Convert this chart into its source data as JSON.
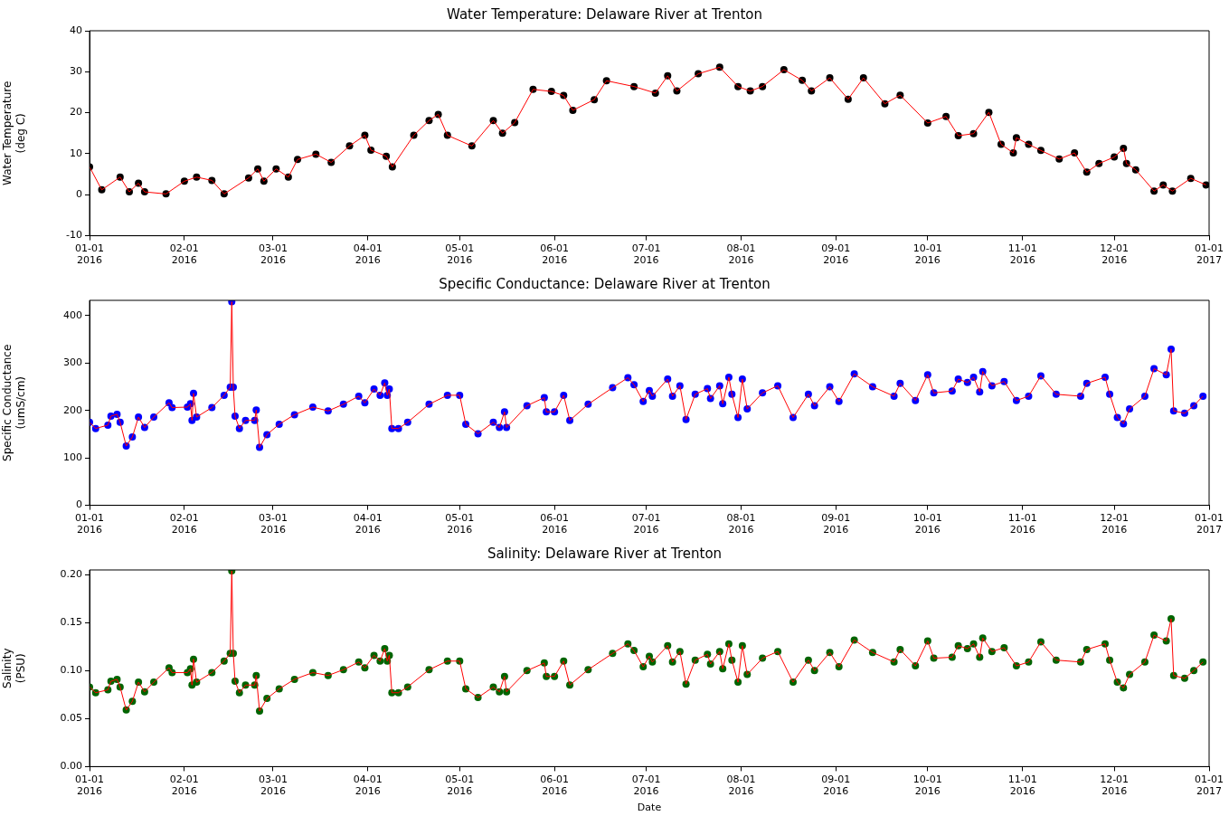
{
  "chart_data": [
    {
      "type": "line",
      "title": "Water Temperature: Delaware River at Trenton",
      "ylabel": "Water Temperature\n(deg C)",
      "marker": "circle",
      "xlim": [
        "2016-01-01",
        "2017-01-01"
      ],
      "xticks": [
        {
          "value": "2016-01-01",
          "label": "01-01\n2016"
        },
        {
          "value": "2016-02-01",
          "label": "02-01\n2016"
        },
        {
          "value": "2016-03-01",
          "label": "03-01\n2016"
        },
        {
          "value": "2016-04-01",
          "label": "04-01\n2016"
        },
        {
          "value": "2016-05-01",
          "label": "05-01\n2016"
        },
        {
          "value": "2016-06-01",
          "label": "06-01\n2016"
        },
        {
          "value": "2016-07-01",
          "label": "07-01\n2016"
        },
        {
          "value": "2016-08-01",
          "label": "08-01\n2016"
        },
        {
          "value": "2016-09-01",
          "label": "09-01\n2016"
        },
        {
          "value": "2016-10-01",
          "label": "10-01\n2016"
        },
        {
          "value": "2016-11-01",
          "label": "11-01\n2016"
        },
        {
          "value": "2016-12-01",
          "label": "12-01\n2016"
        },
        {
          "value": "2017-01-01",
          "label": "01-01\n2017"
        }
      ],
      "ylim": [
        -10,
        40
      ],
      "yticks": [
        -10,
        0,
        10,
        20,
        30,
        40
      ],
      "x": [
        "2016-01-01",
        "2016-01-05",
        "2016-01-11",
        "2016-01-14",
        "2016-01-17",
        "2016-01-19",
        "2016-01-26",
        "2016-02-01",
        "2016-02-05",
        "2016-02-10",
        "2016-02-14",
        "2016-02-22",
        "2016-02-25",
        "2016-02-27",
        "2016-03-02",
        "2016-03-06",
        "2016-03-09",
        "2016-03-15",
        "2016-03-20",
        "2016-03-26",
        "2016-03-31",
        "2016-04-02",
        "2016-04-07",
        "2016-04-09",
        "2016-04-16",
        "2016-04-21",
        "2016-04-24",
        "2016-04-27",
        "2016-05-05",
        "2016-05-12",
        "2016-05-15",
        "2016-05-19",
        "2016-05-25",
        "2016-05-31",
        "2016-06-04",
        "2016-06-07",
        "2016-06-14",
        "2016-06-18",
        "2016-06-27",
        "2016-07-04",
        "2016-07-08",
        "2016-07-11",
        "2016-07-18",
        "2016-07-25",
        "2016-07-31",
        "2016-08-04",
        "2016-08-08",
        "2016-08-15",
        "2016-08-21",
        "2016-08-24",
        "2016-08-30",
        "2016-09-05",
        "2016-09-10",
        "2016-09-17",
        "2016-09-22",
        "2016-10-01",
        "2016-10-07",
        "2016-10-11",
        "2016-10-16",
        "2016-10-21",
        "2016-10-25",
        "2016-10-29",
        "2016-10-30",
        "2016-11-03",
        "2016-11-07",
        "2016-11-13",
        "2016-11-18",
        "2016-11-22",
        "2016-11-26",
        "2016-12-01",
        "2016-12-04",
        "2016-12-05",
        "2016-12-08",
        "2016-12-14",
        "2016-12-17",
        "2016-12-20",
        "2016-12-26",
        "2016-12-31"
      ],
      "series": [
        {
          "type": "scatter",
          "color": "#000000",
          "values": [
            6.8,
            1.2,
            4.3,
            0.7,
            2.8,
            0.7,
            0.2,
            3.3,
            4.3,
            3.5,
            0.2,
            4.1,
            6.3,
            3.3,
            6.3,
            4.3,
            8.6,
            9.9,
            7.9,
            11.9,
            14.5,
            10.9,
            9.4,
            6.8,
            14.5,
            18.1,
            19.6,
            14.5,
            11.9,
            18.1,
            15,
            17.6,
            25.7,
            25.2,
            24.2,
            20.6,
            23.2,
            27.8,
            26.4,
            24.8,
            29,
            25.3,
            29.5,
            31.1,
            26.4,
            25.3,
            26.4,
            30.5,
            27.9,
            25.3,
            28.5,
            23.3,
            28.5,
            22.2,
            24.3,
            17.5,
            19.1,
            14.4,
            14.9,
            20.1,
            12.3,
            10.2,
            13.9,
            12.3,
            10.8,
            8.7,
            10.2,
            5.5,
            7.6,
            9.2,
            11.3,
            7.6,
            6.1,
            0.9,
            2.4,
            0.9,
            4,
            2.4
          ]
        },
        {
          "type": "line",
          "color": "#ff0000",
          "marker": "none",
          "values": [
            6.8,
            1.2,
            4.3,
            0.7,
            2.8,
            0.7,
            0.2,
            3.3,
            4.3,
            3.5,
            0.2,
            4.1,
            6.3,
            3.3,
            6.3,
            4.3,
            8.6,
            9.9,
            7.9,
            11.9,
            14.5,
            10.9,
            9.4,
            6.8,
            14.5,
            18.1,
            19.6,
            14.5,
            11.9,
            18.1,
            15,
            17.6,
            25.7,
            25.2,
            24.2,
            20.6,
            23.2,
            27.8,
            26.4,
            24.8,
            29,
            25.3,
            29.5,
            31.1,
            26.4,
            25.3,
            26.4,
            30.5,
            27.9,
            25.3,
            28.5,
            23.3,
            28.5,
            22.2,
            24.3,
            17.5,
            19.1,
            14.4,
            14.9,
            20.1,
            12.3,
            10.2,
            13.9,
            12.3,
            10.8,
            8.7,
            10.2,
            5.5,
            7.6,
            9.2,
            11.3,
            7.6,
            6.1,
            0.9,
            2.4,
            0.9,
            4,
            2.4
          ]
        }
      ]
    },
    {
      "type": "line",
      "title": "Specific Conductance: Delaware River at Trenton",
      "ylabel": "Specific Conductance\n(umS/cm)",
      "marker": "circle",
      "xlim": [
        "2016-01-01",
        "2017-01-01"
      ],
      "xticks": [
        {
          "value": "2016-01-01",
          "label": "01-01\n2016"
        },
        {
          "value": "2016-02-01",
          "label": "02-01\n2016"
        },
        {
          "value": "2016-03-01",
          "label": "03-01\n2016"
        },
        {
          "value": "2016-04-01",
          "label": "04-01\n2016"
        },
        {
          "value": "2016-05-01",
          "label": "05-01\n2016"
        },
        {
          "value": "2016-06-01",
          "label": "06-01\n2016"
        },
        {
          "value": "2016-07-01",
          "label": "07-01\n2016"
        },
        {
          "value": "2016-08-01",
          "label": "08-01\n2016"
        },
        {
          "value": "2016-09-01",
          "label": "09-01\n2016"
        },
        {
          "value": "2016-10-01",
          "label": "10-01\n2016"
        },
        {
          "value": "2016-11-01",
          "label": "11-01\n2016"
        },
        {
          "value": "2016-12-01",
          "label": "12-01\n2016"
        },
        {
          "value": "2017-01-01",
          "label": "01-01\n2017"
        }
      ],
      "ylim": [
        0,
        432
      ],
      "yticks": [
        0,
        100,
        200,
        300,
        400
      ],
      "x": [
        "2016-01-01",
        "2016-01-03",
        "2016-01-07",
        "2016-01-08",
        "2016-01-10",
        "2016-01-11",
        "2016-01-13",
        "2016-01-15",
        "2016-01-17",
        "2016-01-19",
        "2016-01-22",
        "2016-01-27",
        "2016-01-28",
        "2016-02-02",
        "2016-02-03",
        "2016-02-03T12:00",
        "2016-02-04",
        "2016-02-05",
        "2016-02-10",
        "2016-02-14",
        "2016-02-16",
        "2016-02-16T12:00",
        "2016-02-17",
        "2016-02-17T14:00",
        "2016-02-19",
        "2016-02-21",
        "2016-02-24",
        "2016-02-24T12:00",
        "2016-02-25T14:00",
        "2016-02-28",
        "2016-03-03",
        "2016-03-08",
        "2016-03-14",
        "2016-03-19",
        "2016-03-24",
        "2016-03-29",
        "2016-03-31",
        "2016-04-03",
        "2016-04-05",
        "2016-04-06T12:00",
        "2016-04-07T08:00",
        "2016-04-08",
        "2016-04-08T20:00",
        "2016-04-11",
        "2016-04-14",
        "2016-04-21",
        "2016-04-27",
        "2016-05-01",
        "2016-05-03",
        "2016-05-07",
        "2016-05-12",
        "2016-05-14",
        "2016-05-15T16:00",
        "2016-05-16T08:00",
        "2016-05-23",
        "2016-05-28T16:00",
        "2016-05-29T08:00",
        "2016-06-01",
        "2016-06-04",
        "2016-06-06",
        "2016-06-12",
        "2016-06-20",
        "2016-06-25",
        "2016-06-27",
        "2016-06-30",
        "2016-07-02",
        "2016-07-03",
        "2016-07-08",
        "2016-07-09T14:00",
        "2016-07-12",
        "2016-07-14",
        "2016-07-17",
        "2016-07-21",
        "2016-07-22",
        "2016-07-25",
        "2016-07-26",
        "2016-07-28",
        "2016-07-29",
        "2016-07-31",
        "2016-08-01T10:00",
        "2016-08-03",
        "2016-08-08",
        "2016-08-13",
        "2016-08-18",
        "2016-08-23",
        "2016-08-25",
        "2016-08-30",
        "2016-09-02",
        "2016-09-07",
        "2016-09-13",
        "2016-09-20",
        "2016-09-22",
        "2016-09-27",
        "2016-10-01",
        "2016-10-03",
        "2016-10-09",
        "2016-10-11",
        "2016-10-14",
        "2016-10-16",
        "2016-10-18",
        "2016-10-19",
        "2016-10-22",
        "2016-10-26",
        "2016-10-30",
        "2016-11-03",
        "2016-11-07",
        "2016-11-12",
        "2016-11-20",
        "2016-11-22",
        "2016-11-28",
        "2016-11-29T12:00",
        "2016-12-02",
        "2016-12-04",
        "2016-12-06",
        "2016-12-11",
        "2016-12-14",
        "2016-12-18",
        "2016-12-19T14:00",
        "2016-12-20T10:00",
        "2016-12-24",
        "2016-12-27",
        "2016-12-30"
      ],
      "series": [
        {
          "type": "scatter",
          "color": "#0000ff",
          "values": [
            175,
            162,
            169,
            188,
            192,
            175,
            125,
            144,
            186,
            164,
            186,
            216,
            206,
            207,
            214,
            179,
            236,
            186,
            206,
            232,
            249,
            429,
            249,
            188,
            162,
            179,
            179,
            201,
            122,
            149,
            171,
            191,
            207,
            199,
            213,
            230,
            216,
            245,
            232,
            258,
            232,
            245,
            162,
            162,
            175,
            213,
            232,
            232,
            171,
            151,
            175,
            164,
            197,
            164,
            210,
            227,
            197,
            197,
            232,
            179,
            213,
            248,
            269,
            254,
            219,
            242,
            230,
            266,
            230,
            252,
            181,
            234,
            246,
            225,
            252,
            214,
            270,
            234,
            185,
            266,
            203,
            237,
            252,
            185,
            234,
            210,
            250,
            219,
            277,
            250,
            230,
            257,
            221,
            275,
            237,
            241,
            266,
            259,
            270,
            239,
            282,
            252,
            261,
            221,
            230,
            273,
            234,
            230,
            257,
            270,
            234,
            185,
            172,
            203,
            230,
            288,
            275,
            329,
            199,
            194,
            210,
            230
          ]
        },
        {
          "type": "line",
          "color": "#ff0000",
          "marker": "none",
          "values": [
            175,
            162,
            169,
            188,
            192,
            175,
            125,
            144,
            186,
            164,
            186,
            216,
            206,
            207,
            214,
            179,
            236,
            186,
            206,
            232,
            249,
            429,
            249,
            188,
            162,
            179,
            179,
            201,
            122,
            149,
            171,
            191,
            207,
            199,
            213,
            230,
            216,
            245,
            232,
            258,
            232,
            245,
            162,
            162,
            175,
            213,
            232,
            232,
            171,
            151,
            175,
            164,
            197,
            164,
            210,
            227,
            197,
            197,
            232,
            179,
            213,
            248,
            269,
            254,
            219,
            242,
            230,
            266,
            230,
            252,
            181,
            234,
            246,
            225,
            252,
            214,
            270,
            234,
            185,
            266,
            203,
            237,
            252,
            185,
            234,
            210,
            250,
            219,
            277,
            250,
            230,
            257,
            221,
            275,
            237,
            241,
            266,
            259,
            270,
            239,
            282,
            252,
            261,
            221,
            230,
            273,
            234,
            230,
            257,
            270,
            234,
            185,
            172,
            203,
            230,
            288,
            275,
            329,
            199,
            194,
            210,
            230
          ]
        }
      ]
    },
    {
      "type": "line",
      "title": "Salinity: Delaware River at Trenton",
      "xlabel": "Date",
      "ylabel": "Salinity\n(PSU)",
      "marker": "circle",
      "xlim": [
        "2016-01-01",
        "2017-01-01"
      ],
      "xticks": [
        {
          "value": "2016-01-01",
          "label": "01-01\n2016"
        },
        {
          "value": "2016-02-01",
          "label": "02-01\n2016"
        },
        {
          "value": "2016-03-01",
          "label": "03-01\n2016"
        },
        {
          "value": "2016-04-01",
          "label": "04-01\n2016"
        },
        {
          "value": "2016-05-01",
          "label": "05-01\n2016"
        },
        {
          "value": "2016-06-01",
          "label": "06-01\n2016"
        },
        {
          "value": "2016-07-01",
          "label": "07-01\n2016"
        },
        {
          "value": "2016-08-01",
          "label": "08-01\n2016"
        },
        {
          "value": "2016-09-01",
          "label": "09-01\n2016"
        },
        {
          "value": "2016-10-01",
          "label": "10-01\n2016"
        },
        {
          "value": "2016-11-01",
          "label": "11-01\n2016"
        },
        {
          "value": "2016-12-01",
          "label": "12-01\n2016"
        },
        {
          "value": "2017-01-01",
          "label": "01-01\n2017"
        }
      ],
      "ylim": [
        0,
        0.205
      ],
      "yticks": [
        {
          "value": 0,
          "label": "0.00"
        },
        {
          "value": 0.05,
          "label": "0.05"
        },
        {
          "value": 0.1,
          "label": "0.10"
        },
        {
          "value": 0.15,
          "label": "0.15"
        },
        {
          "value": 0.2,
          "label": "0.20"
        }
      ],
      "x": [
        "2016-01-01",
        "2016-01-03",
        "2016-01-07",
        "2016-01-08",
        "2016-01-10",
        "2016-01-11",
        "2016-01-13",
        "2016-01-15",
        "2016-01-17",
        "2016-01-19",
        "2016-01-22",
        "2016-01-27",
        "2016-01-28",
        "2016-02-02",
        "2016-02-03",
        "2016-02-03T12:00",
        "2016-02-04",
        "2016-02-05",
        "2016-02-10",
        "2016-02-14",
        "2016-02-16",
        "2016-02-16T12:00",
        "2016-02-17",
        "2016-02-17T14:00",
        "2016-02-19",
        "2016-02-21",
        "2016-02-24",
        "2016-02-24T12:00",
        "2016-02-25T14:00",
        "2016-02-28",
        "2016-03-03",
        "2016-03-08",
        "2016-03-14",
        "2016-03-19",
        "2016-03-24",
        "2016-03-29",
        "2016-03-31",
        "2016-04-03",
        "2016-04-05",
        "2016-04-06T12:00",
        "2016-04-07T08:00",
        "2016-04-08",
        "2016-04-08T20:00",
        "2016-04-11",
        "2016-04-14",
        "2016-04-21",
        "2016-04-27",
        "2016-05-01",
        "2016-05-03",
        "2016-05-07",
        "2016-05-12",
        "2016-05-14",
        "2016-05-15T16:00",
        "2016-05-16T08:00",
        "2016-05-23",
        "2016-05-28T16:00",
        "2016-05-29T08:00",
        "2016-06-01",
        "2016-06-04",
        "2016-06-06",
        "2016-06-12",
        "2016-06-20",
        "2016-06-25",
        "2016-06-27",
        "2016-06-30",
        "2016-07-02",
        "2016-07-03",
        "2016-07-08",
        "2016-07-09T14:00",
        "2016-07-12",
        "2016-07-14",
        "2016-07-17",
        "2016-07-21",
        "2016-07-22",
        "2016-07-25",
        "2016-07-26",
        "2016-07-28",
        "2016-07-29",
        "2016-07-31",
        "2016-08-01T10:00",
        "2016-08-03",
        "2016-08-08",
        "2016-08-13",
        "2016-08-18",
        "2016-08-23",
        "2016-08-25",
        "2016-08-30",
        "2016-09-02",
        "2016-09-07",
        "2016-09-13",
        "2016-09-20",
        "2016-09-22",
        "2016-09-27",
        "2016-10-01",
        "2016-10-03",
        "2016-10-09",
        "2016-10-11",
        "2016-10-14",
        "2016-10-16",
        "2016-10-18",
        "2016-10-19",
        "2016-10-22",
        "2016-10-26",
        "2016-10-30",
        "2016-11-03",
        "2016-11-07",
        "2016-11-12",
        "2016-11-20",
        "2016-11-22",
        "2016-11-28",
        "2016-11-29T12:00",
        "2016-12-02",
        "2016-12-04",
        "2016-12-06",
        "2016-12-11",
        "2016-12-14",
        "2016-12-18",
        "2016-12-19T14:00",
        "2016-12-20T10:00",
        "2016-12-24",
        "2016-12-27",
        "2016-12-30"
      ],
      "series": [
        {
          "type": "scatter",
          "color": "#006400",
          "values": [
            0.083,
            0.077,
            0.08,
            0.089,
            0.091,
            0.083,
            0.059,
            0.068,
            0.088,
            0.078,
            0.088,
            0.103,
            0.098,
            0.098,
            0.102,
            0.085,
            0.112,
            0.088,
            0.098,
            0.11,
            0.118,
            0.204,
            0.118,
            0.089,
            0.077,
            0.085,
            0.085,
            0.095,
            0.058,
            0.071,
            0.081,
            0.091,
            0.098,
            0.095,
            0.101,
            0.109,
            0.103,
            0.116,
            0.11,
            0.123,
            0.11,
            0.116,
            0.077,
            0.077,
            0.083,
            0.101,
            0.11,
            0.11,
            0.081,
            0.072,
            0.083,
            0.078,
            0.094,
            0.078,
            0.1,
            0.108,
            0.094,
            0.094,
            0.11,
            0.085,
            0.101,
            0.118,
            0.128,
            0.121,
            0.104,
            0.115,
            0.109,
            0.126,
            0.109,
            0.12,
            0.086,
            0.111,
            0.117,
            0.107,
            0.12,
            0.102,
            0.128,
            0.111,
            0.088,
            0.126,
            0.096,
            0.113,
            0.12,
            0.088,
            0.111,
            0.1,
            0.119,
            0.104,
            0.132,
            0.119,
            0.109,
            0.122,
            0.105,
            0.131,
            0.113,
            0.114,
            0.126,
            0.123,
            0.128,
            0.114,
            0.134,
            0.12,
            0.124,
            0.105,
            0.109,
            0.13,
            0.111,
            0.109,
            0.122,
            0.128,
            0.111,
            0.088,
            0.082,
            0.096,
            0.109,
            0.137,
            0.131,
            0.154,
            0.095,
            0.092,
            0.1,
            0.109
          ]
        },
        {
          "type": "line",
          "color": "#ff0000",
          "marker": "none",
          "values": [
            0.083,
            0.077,
            0.08,
            0.089,
            0.091,
            0.083,
            0.059,
            0.068,
            0.088,
            0.078,
            0.088,
            0.103,
            0.098,
            0.098,
            0.102,
            0.085,
            0.112,
            0.088,
            0.098,
            0.11,
            0.118,
            0.204,
            0.118,
            0.089,
            0.077,
            0.085,
            0.085,
            0.095,
            0.058,
            0.071,
            0.081,
            0.091,
            0.098,
            0.095,
            0.101,
            0.109,
            0.103,
            0.116,
            0.11,
            0.123,
            0.11,
            0.116,
            0.077,
            0.077,
            0.083,
            0.101,
            0.11,
            0.11,
            0.081,
            0.072,
            0.083,
            0.078,
            0.094,
            0.078,
            0.1,
            0.108,
            0.094,
            0.094,
            0.11,
            0.085,
            0.101,
            0.118,
            0.128,
            0.121,
            0.104,
            0.115,
            0.109,
            0.126,
            0.109,
            0.12,
            0.086,
            0.111,
            0.117,
            0.107,
            0.12,
            0.102,
            0.128,
            0.111,
            0.088,
            0.126,
            0.096,
            0.113,
            0.12,
            0.088,
            0.111,
            0.1,
            0.119,
            0.104,
            0.132,
            0.119,
            0.109,
            0.122,
            0.105,
            0.131,
            0.113,
            0.114,
            0.126,
            0.123,
            0.128,
            0.114,
            0.134,
            0.12,
            0.124,
            0.105,
            0.109,
            0.13,
            0.111,
            0.109,
            0.122,
            0.128,
            0.111,
            0.088,
            0.082,
            0.096,
            0.109,
            0.137,
            0.131,
            0.154,
            0.095,
            0.092,
            0.1,
            0.109
          ]
        }
      ]
    }
  ]
}
